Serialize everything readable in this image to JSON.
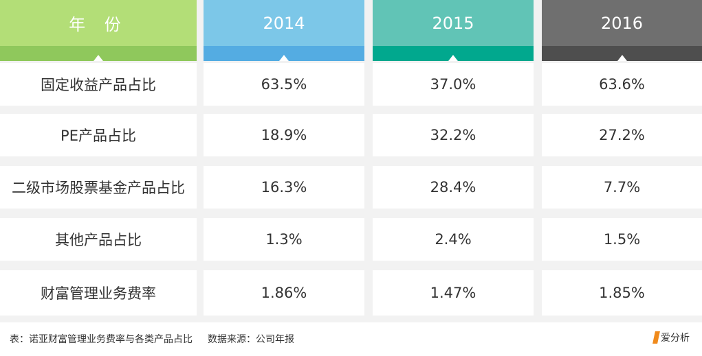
{
  "header": {
    "label": "年 份",
    "years": [
      "2014",
      "2015",
      "2016"
    ]
  },
  "rows": [
    {
      "label": "固定收益产品占比",
      "values": [
        "63.5%",
        "37.0%",
        "63.6%"
      ]
    },
    {
      "label": "PE产品占比",
      "values": [
        "18.9%",
        "32.2%",
        "27.2%"
      ]
    },
    {
      "label": "二级市场股票基金产品占比",
      "values": [
        "16.3%",
        "28.4%",
        "7.7%"
      ]
    },
    {
      "label": "其他产品占比",
      "values": [
        "1.3%",
        "2.4%",
        "1.5%"
      ]
    },
    {
      "label": "财富管理业务费率",
      "values": [
        "1.86%",
        "1.47%",
        "1.85%"
      ]
    }
  ],
  "footer": {
    "caption": "表：诺亚财富管理业务费率与各类产品占比",
    "source": "数据来源：公司年报",
    "logo": "爱分析"
  },
  "colors": {
    "col0_header": "#b3de77",
    "col1_header": "#7cc7e8",
    "col2_header": "#61c4b6",
    "col3_header": "#6f6f6f",
    "logo_accent": "#f08a1c"
  }
}
